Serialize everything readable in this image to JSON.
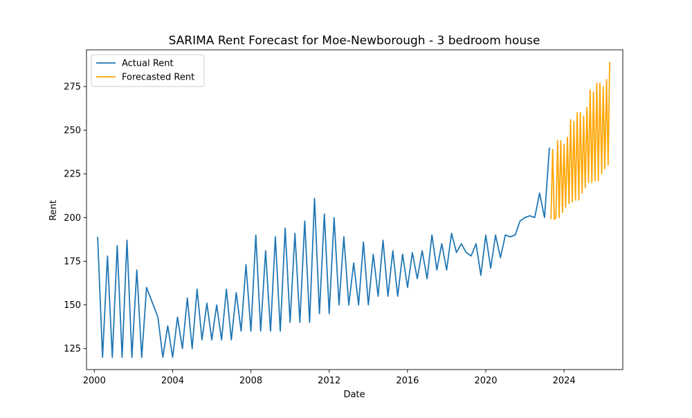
{
  "chart_data": {
    "type": "line",
    "title": "SARIMA Rent Forecast for Moe-Newborough - 3 bedroom house",
    "xlabel": "Date",
    "ylabel": "Rent",
    "xlim": [
      1999.6,
      2027.0
    ],
    "ylim": [
      113,
      296
    ],
    "x_ticks": [
      2000,
      2004,
      2008,
      2012,
      2016,
      2020,
      2024
    ],
    "y_ticks": [
      125,
      150,
      175,
      200,
      225,
      250,
      275
    ],
    "grid": false,
    "legend_position": "top-left",
    "series": [
      {
        "name": "Actual Rent",
        "color": "#1f77b4",
        "points": [
          [
            2000.17,
            189
          ],
          [
            2000.42,
            120
          ],
          [
            2000.67,
            178
          ],
          [
            2000.92,
            120
          ],
          [
            2001.17,
            184
          ],
          [
            2001.42,
            120
          ],
          [
            2001.67,
            187
          ],
          [
            2001.92,
            120
          ],
          [
            2002.17,
            170
          ],
          [
            2002.42,
            120
          ],
          [
            2002.67,
            160
          ],
          [
            2003.25,
            143
          ],
          [
            2003.5,
            120
          ],
          [
            2003.75,
            138
          ],
          [
            2004.0,
            120
          ],
          [
            2004.25,
            143
          ],
          [
            2004.5,
            125
          ],
          [
            2004.75,
            154
          ],
          [
            2005.0,
            125
          ],
          [
            2005.25,
            159
          ],
          [
            2005.5,
            130
          ],
          [
            2005.75,
            151
          ],
          [
            2006.0,
            130
          ],
          [
            2006.25,
            150
          ],
          [
            2006.5,
            130
          ],
          [
            2006.75,
            159
          ],
          [
            2007.0,
            130
          ],
          [
            2007.25,
            157
          ],
          [
            2007.5,
            135
          ],
          [
            2007.75,
            173
          ],
          [
            2008.0,
            135
          ],
          [
            2008.25,
            190
          ],
          [
            2008.5,
            135
          ],
          [
            2008.75,
            181
          ],
          [
            2009.0,
            135
          ],
          [
            2009.25,
            189
          ],
          [
            2009.5,
            135
          ],
          [
            2009.75,
            194
          ],
          [
            2010.0,
            140
          ],
          [
            2010.25,
            191
          ],
          [
            2010.5,
            140
          ],
          [
            2010.75,
            198
          ],
          [
            2011.0,
            140
          ],
          [
            2011.25,
            211
          ],
          [
            2011.5,
            145
          ],
          [
            2011.75,
            202
          ],
          [
            2012.0,
            145
          ],
          [
            2012.25,
            200
          ],
          [
            2012.5,
            150
          ],
          [
            2012.75,
            189
          ],
          [
            2013.0,
            150
          ],
          [
            2013.25,
            174
          ],
          [
            2013.5,
            150
          ],
          [
            2013.75,
            186
          ],
          [
            2014.0,
            150
          ],
          [
            2014.25,
            179
          ],
          [
            2014.5,
            155
          ],
          [
            2014.75,
            187
          ],
          [
            2015.0,
            155
          ],
          [
            2015.25,
            181
          ],
          [
            2015.5,
            155
          ],
          [
            2015.75,
            179
          ],
          [
            2016.0,
            160
          ],
          [
            2016.25,
            180
          ],
          [
            2016.5,
            165
          ],
          [
            2016.75,
            181
          ],
          [
            2017.0,
            165
          ],
          [
            2017.25,
            190
          ],
          [
            2017.5,
            170
          ],
          [
            2017.75,
            185
          ],
          [
            2018.0,
            170
          ],
          [
            2018.25,
            191
          ],
          [
            2018.5,
            180
          ],
          [
            2018.75,
            185
          ],
          [
            2019.0,
            180
          ],
          [
            2019.25,
            178
          ],
          [
            2019.5,
            185
          ],
          [
            2019.75,
            167
          ],
          [
            2020.0,
            190
          ],
          [
            2020.25,
            171
          ],
          [
            2020.5,
            190
          ],
          [
            2020.75,
            177
          ],
          [
            2021.0,
            190
          ],
          [
            2021.25,
            189
          ],
          [
            2021.5,
            190
          ],
          [
            2021.75,
            198
          ],
          [
            2022.0,
            200
          ],
          [
            2022.25,
            201
          ],
          [
            2022.5,
            200
          ],
          [
            2022.75,
            214
          ],
          [
            2023.0,
            200
          ],
          [
            2023.25,
            240
          ]
        ]
      },
      {
        "name": "Forecasted Rent",
        "color": "#ffa500",
        "points": [
          [
            2023.33,
            199
          ],
          [
            2023.42,
            239
          ],
          [
            2023.5,
            199
          ],
          [
            2023.58,
            200
          ],
          [
            2023.67,
            244
          ],
          [
            2023.75,
            200
          ],
          [
            2023.83,
            244
          ],
          [
            2023.92,
            203
          ],
          [
            2024.0,
            242
          ],
          [
            2024.08,
            206
          ],
          [
            2024.17,
            246
          ],
          [
            2024.25,
            208
          ],
          [
            2024.33,
            256
          ],
          [
            2024.42,
            209
          ],
          [
            2024.5,
            255
          ],
          [
            2024.58,
            210
          ],
          [
            2024.67,
            260
          ],
          [
            2024.75,
            210
          ],
          [
            2024.83,
            260
          ],
          [
            2024.92,
            214
          ],
          [
            2025.0,
            258
          ],
          [
            2025.08,
            217
          ],
          [
            2025.17,
            263
          ],
          [
            2025.25,
            220
          ],
          [
            2025.33,
            273
          ],
          [
            2025.42,
            220
          ],
          [
            2025.5,
            272
          ],
          [
            2025.58,
            221
          ],
          [
            2025.67,
            277
          ],
          [
            2025.75,
            221
          ],
          [
            2025.83,
            277
          ],
          [
            2025.92,
            225
          ],
          [
            2026.0,
            275
          ],
          [
            2026.08,
            228
          ],
          [
            2026.17,
            279
          ],
          [
            2026.25,
            230
          ],
          [
            2026.33,
            289
          ]
        ]
      }
    ]
  }
}
